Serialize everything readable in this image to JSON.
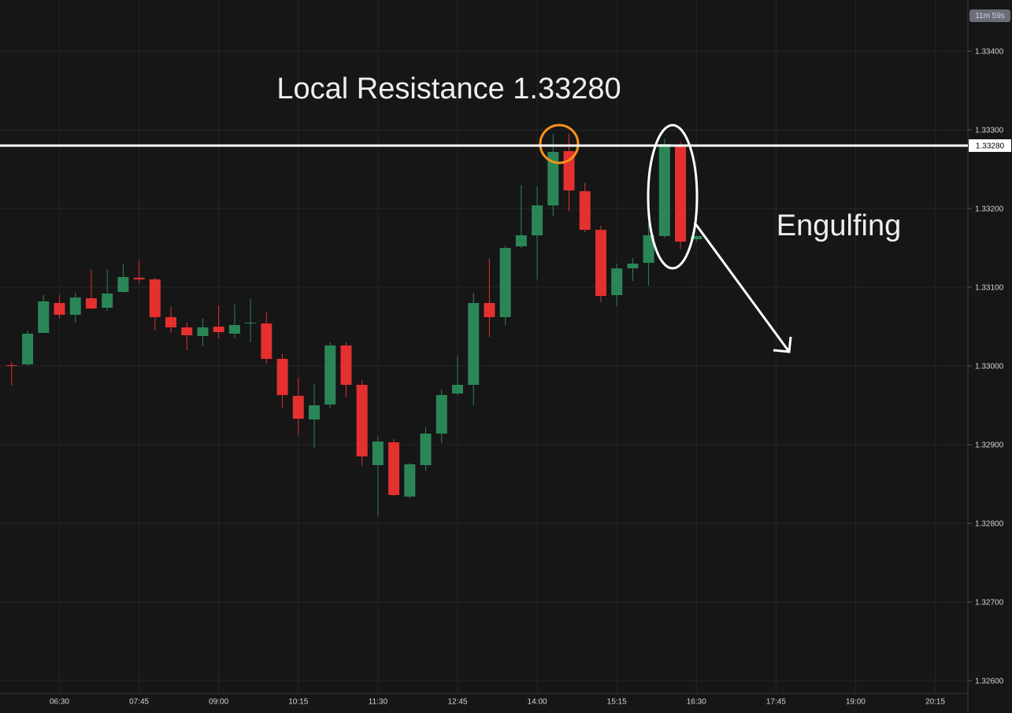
{
  "chart_data": {
    "type": "candlestick",
    "x": [
      "05:45",
      "06:00",
      "06:15",
      "06:30",
      "06:45",
      "07:00",
      "07:15",
      "07:30",
      "07:45",
      "08:00",
      "08:15",
      "08:30",
      "08:45",
      "09:00",
      "09:15",
      "09:30",
      "09:45",
      "10:00",
      "10:15",
      "10:30",
      "10:45",
      "11:00",
      "11:15",
      "11:30",
      "11:45",
      "12:00",
      "12:15",
      "12:30",
      "12:45",
      "13:00",
      "13:15",
      "13:30",
      "13:45",
      "14:00",
      "14:15",
      "14:30",
      "14:45",
      "15:00",
      "15:15",
      "15:30",
      "15:45",
      "16:00",
      "16:15",
      "16:30"
    ],
    "open": [
      1.33001,
      1.33002,
      1.33042,
      1.3308,
      1.33065,
      1.33086,
      1.33074,
      1.33094,
      1.33112,
      1.3311,
      1.33062,
      1.33049,
      1.33038,
      1.3305,
      1.33041,
      1.33054,
      1.33054,
      1.33009,
      1.32962,
      1.32932,
      1.32951,
      1.33026,
      1.32976,
      1.32874,
      1.32903,
      1.32834,
      1.32874,
      1.32914,
      1.32965,
      1.32976,
      1.3308,
      1.33062,
      1.33152,
      1.33166,
      1.33204,
      1.33273,
      1.33222,
      1.33173,
      1.3309,
      1.33124,
      1.33131,
      1.33165,
      1.33281,
      1.33161
    ],
    "high": [
      1.33005,
      1.33045,
      1.3309,
      1.3309,
      1.33093,
      1.33122,
      1.33123,
      1.3313,
      1.33134,
      1.33112,
      1.33075,
      1.33055,
      1.3306,
      1.33077,
      1.33078,
      1.33085,
      1.33068,
      1.33015,
      1.32985,
      1.32977,
      1.3303,
      1.3303,
      1.32982,
      1.3291,
      1.32907,
      1.32877,
      1.32922,
      1.3297,
      1.33013,
      1.33093,
      1.33137,
      1.33153,
      1.3323,
      1.33228,
      1.33295,
      1.33295,
      1.33233,
      1.33178,
      1.3313,
      1.33137,
      1.33182,
      1.33289,
      1.33285,
      1.33166
    ],
    "low": [
      1.32975,
      1.33,
      1.33042,
      1.3306,
      1.33055,
      1.33072,
      1.3307,
      1.33093,
      1.33105,
      1.33045,
      1.33042,
      1.3302,
      1.33025,
      1.33035,
      1.33035,
      1.3303,
      1.33003,
      1.32947,
      1.32912,
      1.32895,
      1.32946,
      1.3296,
      1.32873,
      1.3281,
      1.32835,
      1.32832,
      1.32867,
      1.32902,
      1.32963,
      1.3295,
      1.33037,
      1.33052,
      1.3315,
      1.3311,
      1.3319,
      1.33197,
      1.3317,
      1.33081,
      1.33076,
      1.33108,
      1.33102,
      1.33163,
      1.33148,
      1.33158
    ],
    "close": [
      1.33,
      1.33041,
      1.33082,
      1.33065,
      1.33087,
      1.33073,
      1.33092,
      1.33113,
      1.3311,
      1.33062,
      1.33049,
      1.33039,
      1.33049,
      1.33043,
      1.33052,
      1.33055,
      1.33009,
      1.32963,
      1.32933,
      1.3295,
      1.33026,
      1.32976,
      1.32885,
      1.32904,
      1.32836,
      1.32875,
      1.32914,
      1.32963,
      1.32976,
      1.3308,
      1.33062,
      1.3315,
      1.33166,
      1.33204,
      1.33272,
      1.33223,
      1.33173,
      1.33089,
      1.33124,
      1.3313,
      1.33166,
      1.33282,
      1.33158,
      1.33165
    ],
    "up_color": "#2b8657",
    "down_color": "#e4302f",
    "xlim": [
      "05:34",
      "20:45"
    ],
    "xticks": [
      "06:30",
      "07:45",
      "09:00",
      "10:15",
      "11:30",
      "12:45",
      "14:00",
      "15:15",
      "16:30",
      "17:45",
      "19:00",
      "20:15"
    ],
    "ylim": [
      1.32585,
      1.33465
    ],
    "yticks": [
      {
        "value": 1.334,
        "label": "1.33400"
      },
      {
        "value": 1.333,
        "label": "1.33300"
      },
      {
        "value": 1.332,
        "label": "1.33200"
      },
      {
        "value": 1.331,
        "label": "1.33100"
      },
      {
        "value": 1.33,
        "label": "1.33000"
      },
      {
        "value": 1.329,
        "label": "1.32900"
      },
      {
        "value": 1.328,
        "label": "1.32800"
      },
      {
        "value": 1.327,
        "label": "1.32700"
      },
      {
        "value": 1.326,
        "label": "1.32600"
      }
    ],
    "grid": true,
    "resistance": {
      "value": 1.3328,
      "label": "1.33280"
    },
    "annotations": [
      "Local Resistance 1.33280",
      "Engulfing"
    ],
    "countdown": "11m 59s"
  }
}
